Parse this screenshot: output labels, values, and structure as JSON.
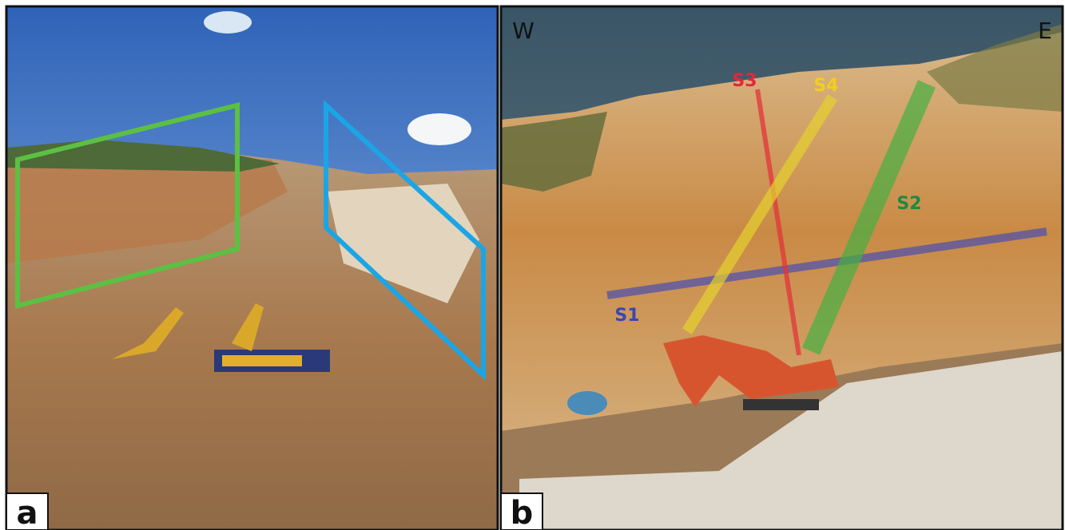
{
  "panels": [
    {
      "label": "a"
    },
    {
      "label": "b",
      "west": "W",
      "east": "E",
      "sets": [
        "S1",
        "S2",
        "S3",
        "S4"
      ]
    }
  ]
}
